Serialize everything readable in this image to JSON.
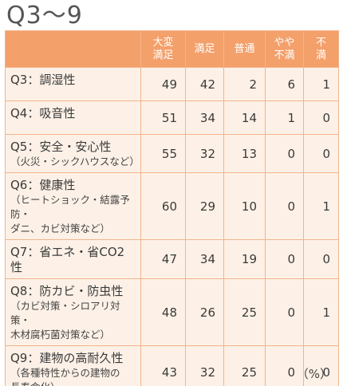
{
  "title": "Q3～9",
  "headers": [
    "大変\n満足",
    "満足",
    "普通",
    "やや\n不満",
    "不\n満"
  ],
  "rows": [
    {
      "main": "Q3：調湿性",
      "sub": [],
      "values": [
        "49",
        "42",
        "2",
        "6",
        "1"
      ]
    },
    {
      "main": "Q4：吸音性",
      "sub": [],
      "values": [
        "51",
        "34",
        "14",
        "1",
        "0"
      ]
    },
    {
      "main": "Q5：安全・安心性",
      "sub": [
        "（火災・シックハウスなど）"
      ],
      "values": [
        "55",
        "32",
        "13",
        "0",
        "0"
      ]
    },
    {
      "main": "Q6：健康性",
      "sub": [
        "（ヒートショック・結露予防・",
        "ダニ、カビ対策など）"
      ],
      "values": [
        "60",
        "29",
        "10",
        "0",
        "1"
      ]
    },
    {
      "main": "Q7：省エネ・省CO2性",
      "sub": [],
      "values": [
        "47",
        "34",
        "19",
        "0",
        "0"
      ]
    },
    {
      "main": "Q8：防カビ・防虫性",
      "sub": [
        "（カビ対策・シロアリ対策・",
        "木材腐朽菌対策など）"
      ],
      "values": [
        "48",
        "26",
        "25",
        "0",
        "1"
      ]
    },
    {
      "main": "Q9：建物の高耐久性",
      "sub": [
        "（各種特性からの建物の",
        "長寿命化）"
      ],
      "values": [
        "43",
        "32",
        "25",
        "0",
        "0"
      ]
    }
  ],
  "unit": "（%）"
}
